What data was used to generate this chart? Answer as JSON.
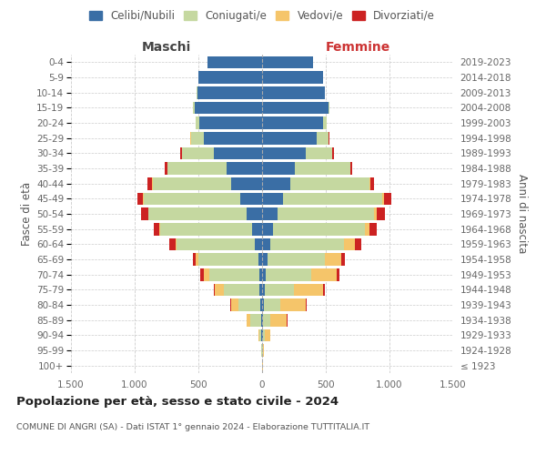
{
  "age_groups": [
    "100+",
    "95-99",
    "90-94",
    "85-89",
    "80-84",
    "75-79",
    "70-74",
    "65-69",
    "60-64",
    "55-59",
    "50-54",
    "45-49",
    "40-44",
    "35-39",
    "30-34",
    "25-29",
    "20-24",
    "15-19",
    "10-14",
    "5-9",
    "0-4"
  ],
  "birth_years": [
    "≤ 1923",
    "1924-1928",
    "1929-1933",
    "1934-1938",
    "1939-1943",
    "1944-1948",
    "1949-1953",
    "1954-1958",
    "1959-1963",
    "1964-1968",
    "1969-1973",
    "1974-1978",
    "1979-1983",
    "1984-1988",
    "1989-1993",
    "1994-1998",
    "1999-2003",
    "2004-2008",
    "2009-2013",
    "2014-2018",
    "2019-2023"
  ],
  "male": {
    "celibi": [
      0,
      2,
      5,
      10,
      15,
      20,
      25,
      30,
      60,
      80,
      120,
      170,
      240,
      280,
      380,
      460,
      490,
      530,
      510,
      500,
      430
    ],
    "coniugati": [
      2,
      5,
      20,
      80,
      170,
      280,
      390,
      470,
      610,
      720,
      770,
      760,
      620,
      460,
      250,
      100,
      30,
      10,
      5,
      2,
      0
    ],
    "vedovi": [
      0,
      2,
      5,
      30,
      60,
      70,
      40,
      20,
      10,
      5,
      5,
      3,
      3,
      2,
      2,
      1,
      1,
      0,
      0,
      0,
      0
    ],
    "divorziati": [
      0,
      0,
      2,
      2,
      5,
      10,
      30,
      25,
      50,
      45,
      55,
      45,
      35,
      20,
      10,
      5,
      2,
      1,
      0,
      0,
      0
    ]
  },
  "female": {
    "nubili": [
      0,
      2,
      5,
      10,
      15,
      20,
      25,
      40,
      65,
      85,
      120,
      165,
      220,
      260,
      340,
      430,
      480,
      520,
      490,
      480,
      400
    ],
    "coniugate": [
      2,
      5,
      15,
      55,
      130,
      230,
      360,
      450,
      580,
      720,
      760,
      780,
      620,
      430,
      210,
      90,
      25,
      10,
      5,
      2,
      0
    ],
    "vedove": [
      2,
      10,
      45,
      130,
      200,
      230,
      200,
      130,
      80,
      40,
      20,
      15,
      10,
      5,
      3,
      2,
      1,
      0,
      0,
      0,
      0
    ],
    "divorziate": [
      0,
      0,
      2,
      2,
      5,
      10,
      20,
      30,
      55,
      55,
      65,
      55,
      30,
      15,
      8,
      3,
      2,
      1,
      0,
      0,
      0
    ]
  },
  "colors": {
    "celibi_nubili": "#3a6ea5",
    "coniugati": "#c5d8a0",
    "vedovi": "#f5c56a",
    "divorziati": "#cc2222"
  },
  "title": "Popolazione per età, sesso e stato civile - 2024",
  "subtitle": "COMUNE DI ANGRI (SA) - Dati ISTAT 1° gennaio 2024 - Elaborazione TUTTITALIA.IT",
  "ylabel_left": "Fasce di età",
  "ylabel_right": "Anni di nascita",
  "xlabel_left": "Maschi",
  "xlabel_right": "Femmine",
  "xlim": 1500,
  "legend_labels": [
    "Celibi/Nubili",
    "Coniugati/e",
    "Vedovi/e",
    "Divorziati/e"
  ],
  "background_color": "#ffffff"
}
